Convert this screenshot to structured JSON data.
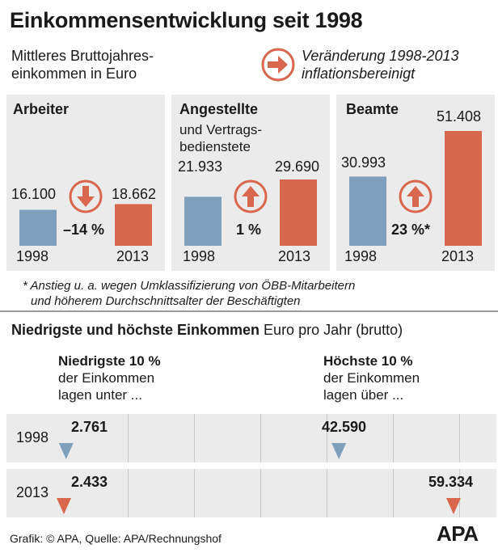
{
  "title": "Einkommensentwicklung seit 1998",
  "subtitle": "Mittleres Bruttojahres-einkommen in Euro",
  "legend": {
    "text_line1": "Veränderung 1998-2013",
    "text_line2": "inflationsbereinigt",
    "icon": "right-arrow-circle"
  },
  "colors": {
    "y1998": "#7f9fba",
    "y2013": "#d9674d",
    "panel": "#ebebeb"
  },
  "panels": [
    {
      "name": "Arbeiter",
      "sub": "",
      "v1998_label": "16.100",
      "v2013_label": "18.662",
      "change": "–14 %",
      "direction": "down",
      "year1": "1998",
      "year2": "2013"
    },
    {
      "name": "Angestellte",
      "sub": "und Vertrags-bedienstete",
      "v1998_label": "21.933",
      "v2013_label": "29.690",
      "change": "1 %",
      "direction": "up",
      "year1": "1998",
      "year2": "2013"
    },
    {
      "name": "Beamte",
      "sub": "",
      "v1998_label": "30.993",
      "v2013_label": "51.408",
      "change": "23 %*",
      "direction": "up",
      "year1": "1998",
      "year2": "2013"
    }
  ],
  "footnote_line1": "* Anstieg u. a. wegen Umklassifizierung von ÖBB-Mitarbeitern",
  "footnote_line2": "und höherem Durchschnittsalter der Beschäftigten",
  "section2": {
    "title_bold": "Niedrigste und höchste Einkommen",
    "title_rest": " Euro pro Jahr (brutto)"
  },
  "col_low": {
    "head": "Niedrigste 10 %",
    "line2": "der Einkommen",
    "line3": "lagen unter ..."
  },
  "col_high": {
    "head": "Höchste 10 %",
    "line2": "der Einkommen",
    "line3": "lagen über ..."
  },
  "rows": [
    {
      "year": "1998",
      "low_label": "2.761",
      "high_label": "42.590"
    },
    {
      "year": "2013",
      "low_label": "2.433",
      "high_label": "59.334"
    }
  ],
  "source": "Grafik: © APA, Quelle: APA/Rechnungshof",
  "logo": "APA",
  "chart_data": [
    {
      "type": "bar",
      "title": "Einkommensentwicklung seit 1998",
      "categories": [
        "Arbeiter",
        "Angestellte und Vertragsbedienstete",
        "Beamte"
      ],
      "series": [
        {
          "name": "1998",
          "values": [
            16100,
            21933,
            30993
          ]
        },
        {
          "name": "2013",
          "values": [
            18662,
            29690,
            51408
          ]
        }
      ],
      "change_pct": [
        -14,
        1,
        23
      ]
    },
    {
      "type": "scatter",
      "title": "Niedrigste und höchste Einkommen",
      "categories": [
        "1998",
        "2013"
      ],
      "series": [
        {
          "name": "Niedrigste 10 %",
          "values": [
            2761,
            2433
          ]
        },
        {
          "name": "Höchste 10 %",
          "values": [
            42590,
            59334
          ]
        }
      ],
      "xlim": [
        0,
        65000
      ]
    }
  ]
}
